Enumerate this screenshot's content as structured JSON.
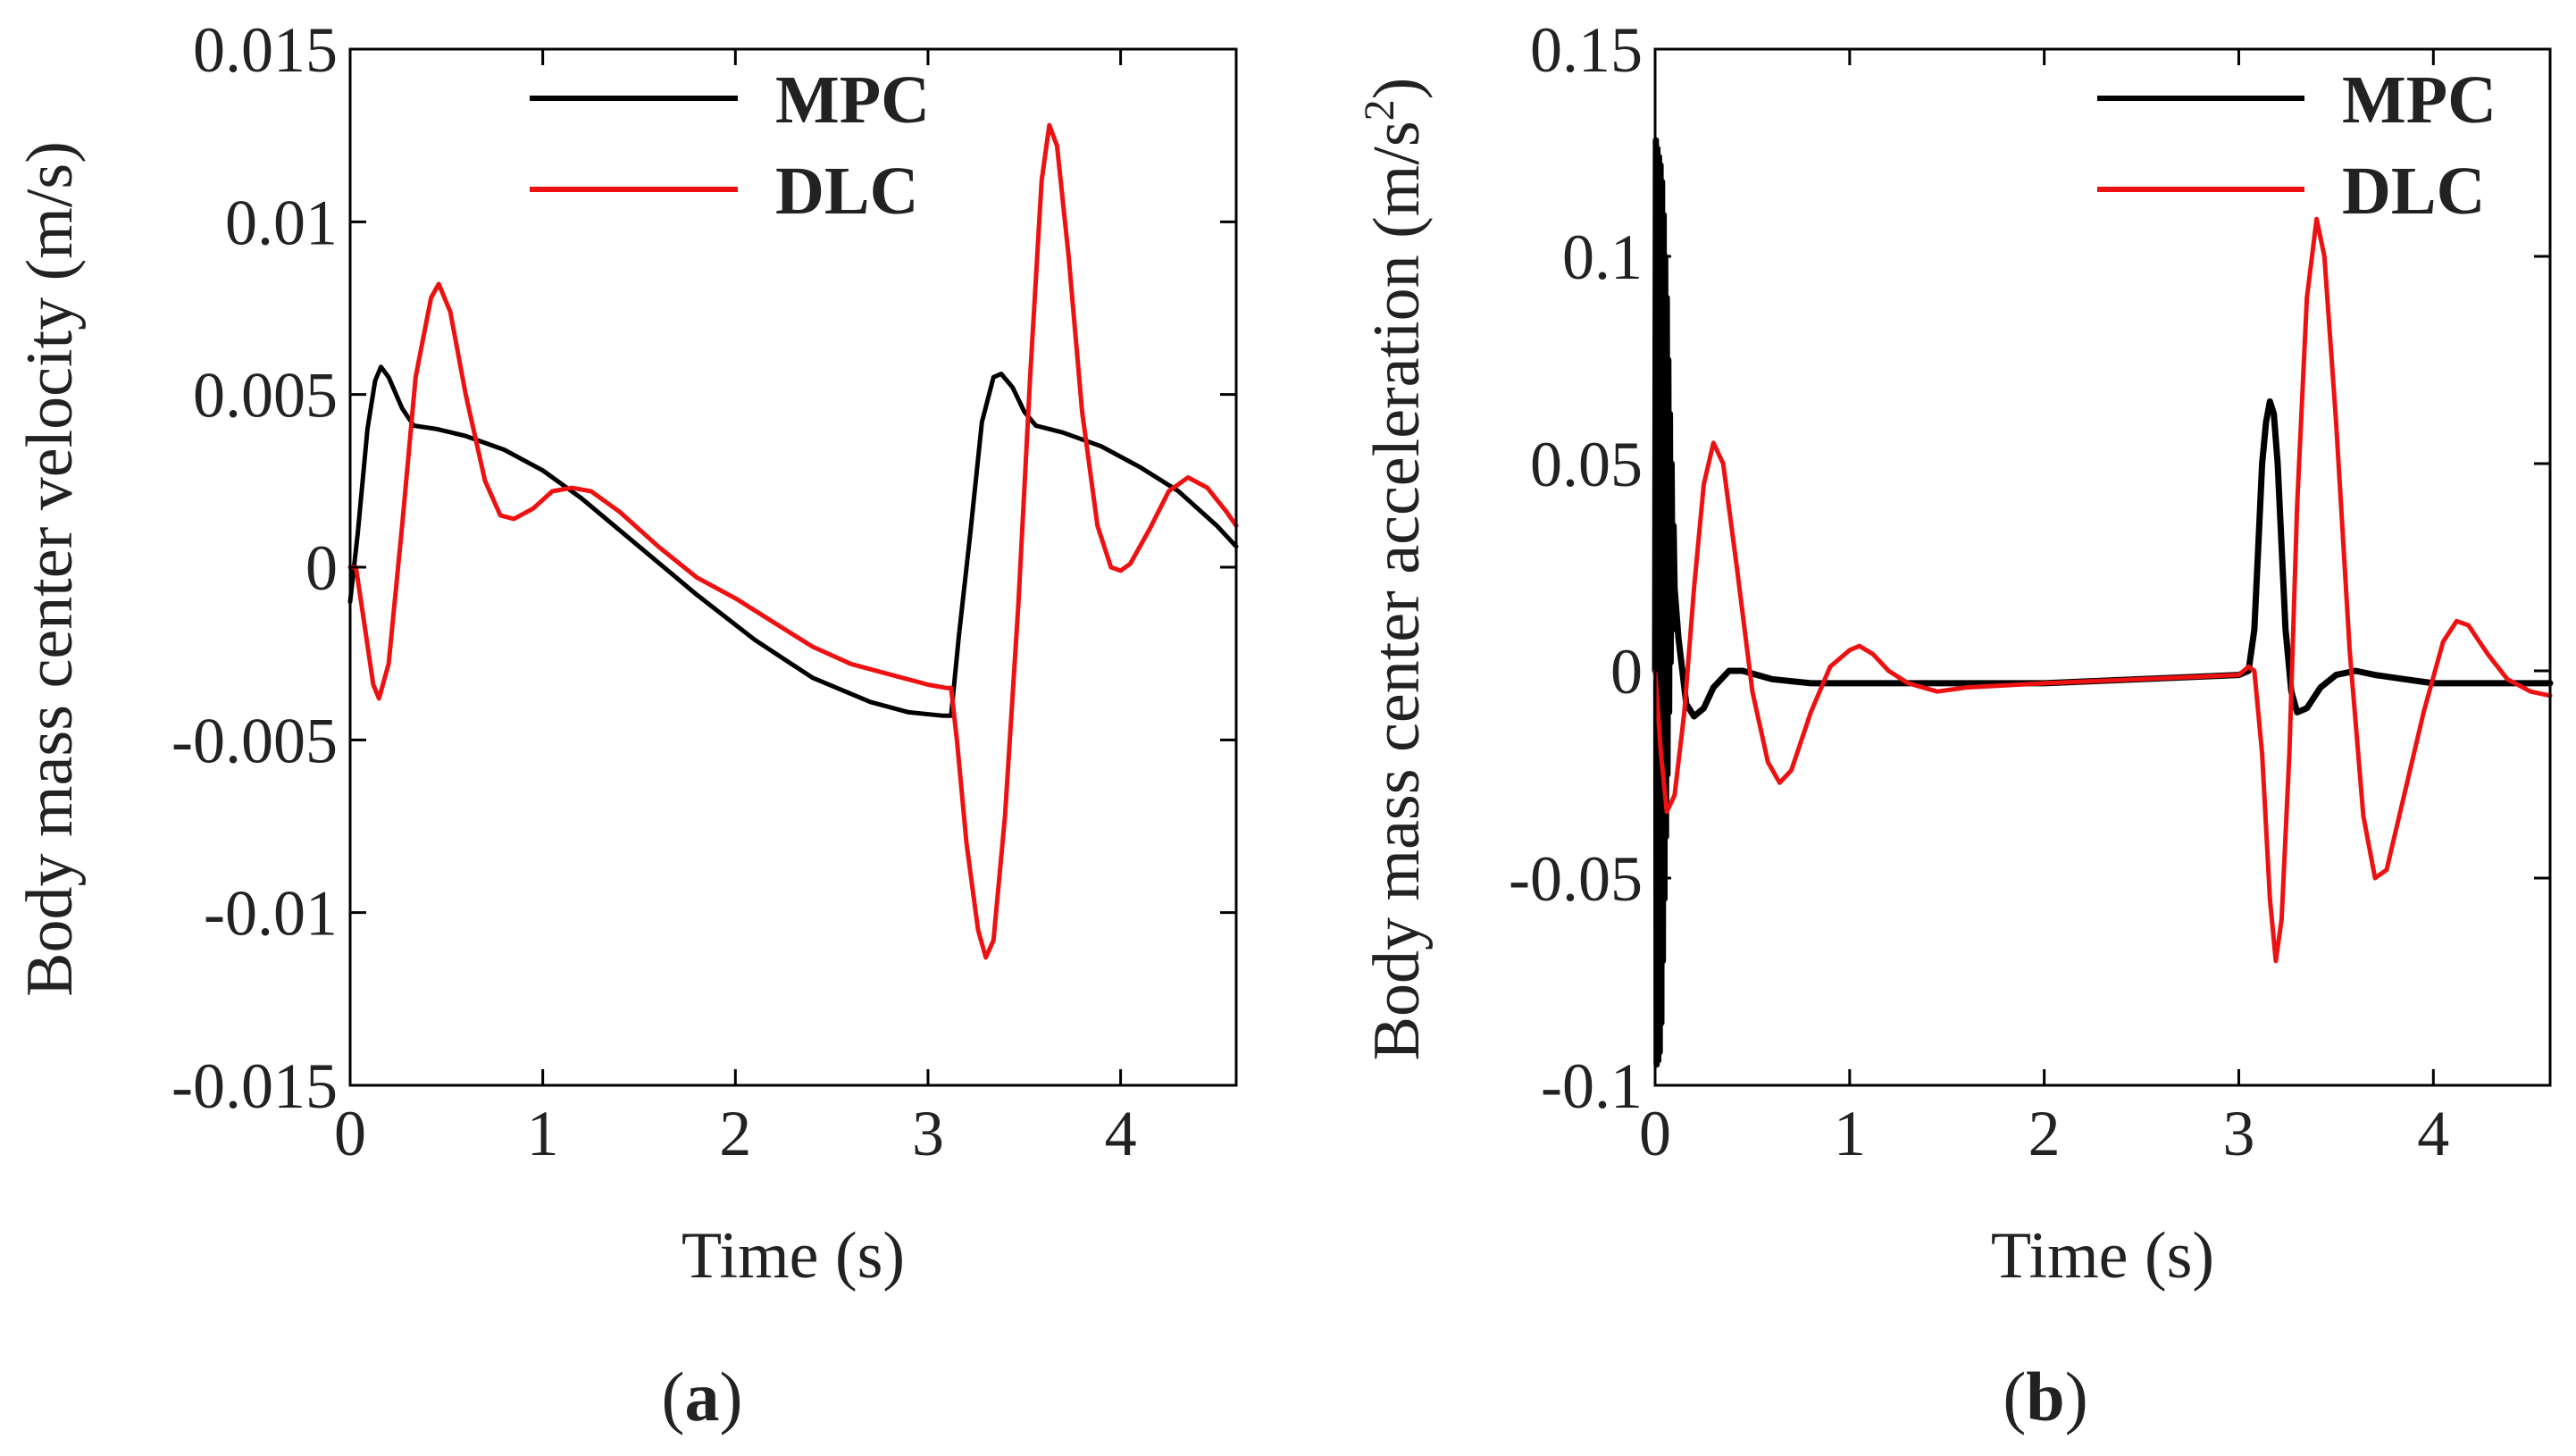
{
  "chart_data": [
    {
      "id": "a",
      "type": "line",
      "caption_letter": "a",
      "xlabel": "Time (s)",
      "ylabel": "Body mass center velocity (m/s)",
      "xlim": [
        0,
        4.6
      ],
      "ylim": [
        -0.015,
        0.015
      ],
      "xticks": [
        0,
        1,
        2,
        3,
        4
      ],
      "xtick_labels": [
        "0",
        "1",
        "2",
        "3",
        "4"
      ],
      "yticks": [
        0.015,
        0.01,
        0.005,
        0,
        -0.005,
        -0.01,
        -0.015
      ],
      "ytick_labels": [
        "0.015",
        "0.01",
        "0.005",
        "0",
        "-0.005",
        "-0.01",
        "-0.015"
      ],
      "legend": {
        "position": "top-right",
        "entries": [
          "MPC",
          "DLC"
        ]
      },
      "series": [
        {
          "name": "MPC",
          "color": "#000000",
          "points": [
            [
              0,
              -0.001
            ],
            [
              0.04,
              0.001
            ],
            [
              0.09,
              0.004
            ],
            [
              0.13,
              0.0054
            ],
            [
              0.16,
              0.0058
            ],
            [
              0.2,
              0.0055
            ],
            [
              0.27,
              0.0046
            ],
            [
              0.33,
              0.0041
            ],
            [
              0.45,
              0.004
            ],
            [
              0.6,
              0.0038
            ],
            [
              0.8,
              0.0034
            ],
            [
              1.0,
              0.0028
            ],
            [
              1.2,
              0.002
            ],
            [
              1.5,
              0.0006
            ],
            [
              1.8,
              -0.0008
            ],
            [
              2.1,
              -0.0021
            ],
            [
              2.4,
              -0.0032
            ],
            [
              2.7,
              -0.0039
            ],
            [
              2.9,
              -0.0042
            ],
            [
              3.08,
              -0.0043
            ],
            [
              3.12,
              -0.0043
            ],
            [
              3.16,
              -0.002
            ],
            [
              3.22,
              0.001
            ],
            [
              3.28,
              0.0042
            ],
            [
              3.34,
              0.0055
            ],
            [
              3.38,
              0.0056
            ],
            [
              3.44,
              0.0052
            ],
            [
              3.5,
              0.0045
            ],
            [
              3.56,
              0.0041
            ],
            [
              3.7,
              0.0039
            ],
            [
              3.9,
              0.0035
            ],
            [
              4.1,
              0.0029
            ],
            [
              4.3,
              0.0022
            ],
            [
              4.5,
              0.0012
            ],
            [
              4.6,
              0.0006
            ]
          ]
        },
        {
          "name": "DLC",
          "color": "#ee1111",
          "points": [
            [
              0,
              0
            ],
            [
              0.03,
              0
            ],
            [
              0.07,
              -0.0015
            ],
            [
              0.12,
              -0.0034
            ],
            [
              0.15,
              -0.0038
            ],
            [
              0.2,
              -0.0028
            ],
            [
              0.27,
              0.0012
            ],
            [
              0.34,
              0.0055
            ],
            [
              0.42,
              0.0078
            ],
            [
              0.46,
              0.0082
            ],
            [
              0.52,
              0.0074
            ],
            [
              0.6,
              0.005
            ],
            [
              0.7,
              0.0025
            ],
            [
              0.78,
              0.0015
            ],
            [
              0.85,
              0.0014
            ],
            [
              0.95,
              0.0017
            ],
            [
              1.05,
              0.0022
            ],
            [
              1.15,
              0.0023
            ],
            [
              1.25,
              0.0022
            ],
            [
              1.4,
              0.0016
            ],
            [
              1.6,
              0.0006
            ],
            [
              1.8,
              -0.0003
            ],
            [
              2.0,
              -0.0009
            ],
            [
              2.2,
              -0.0016
            ],
            [
              2.4,
              -0.0023
            ],
            [
              2.6,
              -0.0028
            ],
            [
              2.8,
              -0.0031
            ],
            [
              3.0,
              -0.0034
            ],
            [
              3.1,
              -0.0035
            ],
            [
              3.12,
              -0.0035
            ],
            [
              3.15,
              -0.005
            ],
            [
              3.2,
              -0.008
            ],
            [
              3.26,
              -0.0105
            ],
            [
              3.3,
              -0.0113
            ],
            [
              3.34,
              -0.0108
            ],
            [
              3.4,
              -0.0072
            ],
            [
              3.47,
              -0.001
            ],
            [
              3.53,
              0.0055
            ],
            [
              3.59,
              0.0112
            ],
            [
              3.63,
              0.0128
            ],
            [
              3.67,
              0.0122
            ],
            [
              3.73,
              0.009
            ],
            [
              3.8,
              0.0045
            ],
            [
              3.88,
              0.0012
            ],
            [
              3.95,
              0
            ],
            [
              4.0,
              -0.0001
            ],
            [
              4.05,
              0.0001
            ],
            [
              4.15,
              0.0011
            ],
            [
              4.25,
              0.0022
            ],
            [
              4.35,
              0.0026
            ],
            [
              4.45,
              0.0023
            ],
            [
              4.55,
              0.0016
            ],
            [
              4.6,
              0.0012
            ]
          ]
        }
      ]
    },
    {
      "id": "b",
      "type": "line",
      "caption_letter": "b",
      "xlabel": "Time (s)",
      "ylabel_main": "Body mass center acceleration (m/s",
      "ylabel_sup": "2",
      "ylabel_close": ")",
      "xlim": [
        0,
        4.6
      ],
      "ylim": [
        -0.1,
        0.15
      ],
      "xticks": [
        0,
        1,
        2,
        3,
        4
      ],
      "xtick_labels": [
        "0",
        "1",
        "2",
        "3",
        "4"
      ],
      "yticks": [
        0.15,
        0.1,
        0.05,
        0,
        -0.05,
        -0.1
      ],
      "ytick_labels": [
        "0.15",
        "0.1",
        "0.05",
        "0",
        "-0.05",
        "-0.1"
      ],
      "legend": {
        "position": "top-right",
        "entries": [
          "MPC",
          "DLC"
        ]
      },
      "series": [
        {
          "name": "MPC",
          "color": "#000000",
          "stroke_weight": "heavy",
          "points": [
            [
              0,
              0
            ],
            [
              0.004,
              0.128
            ],
            [
              0.008,
              -0.095
            ],
            [
              0.012,
              0.126
            ],
            [
              0.016,
              -0.094
            ],
            [
              0.02,
              0.124
            ],
            [
              0.024,
              -0.092
            ],
            [
              0.028,
              0.122
            ],
            [
              0.032,
              -0.085
            ],
            [
              0.036,
              0.118
            ],
            [
              0.04,
              -0.07
            ],
            [
              0.044,
              0.11
            ],
            [
              0.048,
              -0.055
            ],
            [
              0.052,
              0.1
            ],
            [
              0.056,
              -0.04
            ],
            [
              0.06,
              0.09
            ],
            [
              0.064,
              -0.025
            ],
            [
              0.068,
              0.075
            ],
            [
              0.072,
              -0.01
            ],
            [
              0.076,
              0.062
            ],
            [
              0.08,
              0.002
            ],
            [
              0.085,
              0.05
            ],
            [
              0.09,
              0.01
            ],
            [
              0.095,
              0.035
            ],
            [
              0.1,
              0.02
            ],
            [
              0.12,
              0.008
            ],
            [
              0.16,
              -0.008
            ],
            [
              0.2,
              -0.011
            ],
            [
              0.25,
              -0.009
            ],
            [
              0.3,
              -0.004
            ],
            [
              0.38,
              0
            ],
            [
              0.45,
              0
            ],
            [
              0.6,
              -0.002
            ],
            [
              0.8,
              -0.003
            ],
            [
              1.0,
              -0.003
            ],
            [
              1.5,
              -0.003
            ],
            [
              2.0,
              -0.003
            ],
            [
              2.5,
              -0.002
            ],
            [
              3.0,
              -0.001
            ],
            [
              3.05,
              0
            ],
            [
              3.08,
              0.01
            ],
            [
              3.1,
              0.03
            ],
            [
              3.12,
              0.05
            ],
            [
              3.14,
              0.06
            ],
            [
              3.16,
              0.065
            ],
            [
              3.18,
              0.062
            ],
            [
              3.2,
              0.05
            ],
            [
              3.22,
              0.03
            ],
            [
              3.24,
              0.01
            ],
            [
              3.27,
              -0.005
            ],
            [
              3.3,
              -0.01
            ],
            [
              3.35,
              -0.009
            ],
            [
              3.42,
              -0.004
            ],
            [
              3.5,
              -0.001
            ],
            [
              3.6,
              0
            ],
            [
              3.7,
              -0.001
            ],
            [
              3.85,
              -0.002
            ],
            [
              4.0,
              -0.003
            ],
            [
              4.3,
              -0.003
            ],
            [
              4.6,
              -0.003
            ]
          ]
        },
        {
          "name": "DLC",
          "color": "#ee1111",
          "points": [
            [
              0,
              0
            ],
            [
              0.03,
              -0.02
            ],
            [
              0.06,
              -0.034
            ],
            [
              0.1,
              -0.03
            ],
            [
              0.15,
              -0.01
            ],
            [
              0.2,
              0.02
            ],
            [
              0.25,
              0.045
            ],
            [
              0.3,
              0.055
            ],
            [
              0.35,
              0.05
            ],
            [
              0.42,
              0.025
            ],
            [
              0.5,
              -0.005
            ],
            [
              0.58,
              -0.022
            ],
            [
              0.64,
              -0.027
            ],
            [
              0.7,
              -0.024
            ],
            [
              0.8,
              -0.01
            ],
            [
              0.9,
              0.001
            ],
            [
              1.0,
              0.005
            ],
            [
              1.05,
              0.006
            ],
            [
              1.12,
              0.004
            ],
            [
              1.2,
              0
            ],
            [
              1.3,
              -0.003
            ],
            [
              1.45,
              -0.005
            ],
            [
              1.6,
              -0.004
            ],
            [
              2.0,
              -0.003
            ],
            [
              2.5,
              -0.002
            ],
            [
              3.0,
              -0.001
            ],
            [
              3.05,
              0.001
            ],
            [
              3.08,
              0
            ],
            [
              3.12,
              -0.02
            ],
            [
              3.16,
              -0.055
            ],
            [
              3.19,
              -0.07
            ],
            [
              3.22,
              -0.06
            ],
            [
              3.26,
              -0.02
            ],
            [
              3.3,
              0.04
            ],
            [
              3.35,
              0.09
            ],
            [
              3.4,
              0.109
            ],
            [
              3.44,
              0.1
            ],
            [
              3.5,
              0.06
            ],
            [
              3.57,
              0.005
            ],
            [
              3.64,
              -0.035
            ],
            [
              3.7,
              -0.05
            ],
            [
              3.76,
              -0.048
            ],
            [
              3.85,
              -0.03
            ],
            [
              3.95,
              -0.01
            ],
            [
              4.05,
              0.007
            ],
            [
              4.12,
              0.012
            ],
            [
              4.18,
              0.011
            ],
            [
              4.28,
              0.004
            ],
            [
              4.38,
              -0.002
            ],
            [
              4.5,
              -0.005
            ],
            [
              4.6,
              -0.006
            ]
          ]
        }
      ]
    }
  ]
}
